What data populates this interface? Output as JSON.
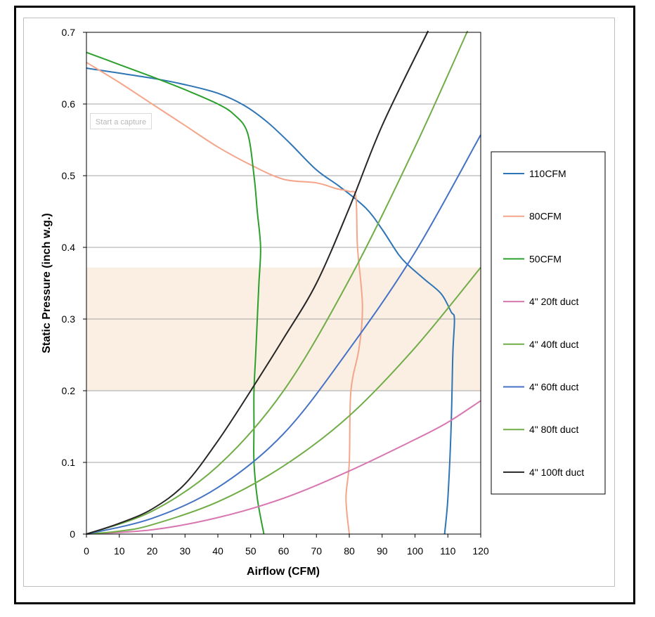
{
  "capture_button": {
    "label": "Start a capture"
  },
  "chart_data": {
    "type": "line",
    "title": "",
    "xlabel": "Airflow (CFM)",
    "ylabel": "Static Pressure (inch w.g.)",
    "xlim": [
      0,
      120
    ],
    "ylim": [
      0,
      0.7
    ],
    "xticks": [
      0,
      10,
      20,
      30,
      40,
      50,
      60,
      70,
      80,
      90,
      100,
      110,
      120
    ],
    "yticks": [
      0,
      0.1,
      0.2,
      0.3,
      0.4,
      0.5,
      0.6,
      0.7
    ],
    "grid": "horizontal",
    "legend_position": "right",
    "highlight_band": {
      "y_range": [
        0.2,
        0.372
      ],
      "color": "#fbeee3"
    },
    "series": [
      {
        "name": "110CFM",
        "color": "#2e75b6",
        "points": [
          [
            0,
            0.65
          ],
          [
            20,
            0.636
          ],
          [
            30,
            0.627
          ],
          [
            40,
            0.615
          ],
          [
            48,
            0.598
          ],
          [
            55,
            0.575
          ],
          [
            62,
            0.545
          ],
          [
            70,
            0.508
          ],
          [
            77,
            0.485
          ],
          [
            85,
            0.455
          ],
          [
            90,
            0.425
          ],
          [
            95,
            0.39
          ],
          [
            98,
            0.375
          ],
          [
            103,
            0.355
          ],
          [
            108,
            0.335
          ],
          [
            111,
            0.31
          ],
          [
            112,
            0.3
          ],
          [
            111.5,
            0.25
          ],
          [
            111,
            0.15
          ],
          [
            110,
            0.05
          ],
          [
            109,
            0
          ]
        ]
      },
      {
        "name": "80CFM",
        "color": "#f4a58a",
        "points": [
          [
            0,
            0.658
          ],
          [
            10,
            0.63
          ],
          [
            20,
            0.6
          ],
          [
            30,
            0.57
          ],
          [
            40,
            0.54
          ],
          [
            50,
            0.515
          ],
          [
            60,
            0.495
          ],
          [
            70,
            0.49
          ],
          [
            76,
            0.482
          ],
          [
            80,
            0.478
          ],
          [
            82,
            0.47
          ],
          [
            82.5,
            0.4
          ],
          [
            84,
            0.32
          ],
          [
            83,
            0.26
          ],
          [
            80.5,
            0.2
          ],
          [
            80,
            0.1
          ],
          [
            79,
            0.05
          ],
          [
            80,
            0
          ]
        ]
      },
      {
        "name": "50CFM",
        "color": "#2ca02c",
        "points": [
          [
            0,
            0.672
          ],
          [
            10,
            0.655
          ],
          [
            20,
            0.638
          ],
          [
            30,
            0.62
          ],
          [
            40,
            0.6
          ],
          [
            45,
            0.585
          ],
          [
            49,
            0.56
          ],
          [
            51,
            0.5
          ],
          [
            52,
            0.45
          ],
          [
            53,
            0.4
          ],
          [
            52.5,
            0.35
          ],
          [
            52,
            0.3
          ],
          [
            51.5,
            0.25
          ],
          [
            51,
            0.2
          ],
          [
            51,
            0.15
          ],
          [
            51,
            0.1
          ],
          [
            52,
            0.05
          ],
          [
            54,
            0
          ]
        ]
      },
      {
        "name": "4\" 20ft duct",
        "color": "#d877b0",
        "points": [
          [
            0,
            0
          ],
          [
            20,
            0.006
          ],
          [
            40,
            0.023
          ],
          [
            60,
            0.05
          ],
          [
            80,
            0.088
          ],
          [
            100,
            0.132
          ],
          [
            110,
            0.156
          ],
          [
            120,
            0.186
          ]
        ]
      },
      {
        "name": "4\" 40ft duct",
        "color": "#70ad47",
        "points": [
          [
            0,
            0
          ],
          [
            10,
            0.004
          ],
          [
            20,
            0.013
          ],
          [
            40,
            0.045
          ],
          [
            60,
            0.095
          ],
          [
            80,
            0.165
          ],
          [
            100,
            0.26
          ],
          [
            120,
            0.372
          ]
        ]
      },
      {
        "name": "4\" 60ft duct",
        "color": "#4472c4",
        "points": [
          [
            0,
            0
          ],
          [
            20,
            0.022
          ],
          [
            40,
            0.065
          ],
          [
            60,
            0.14
          ],
          [
            80,
            0.258
          ],
          [
            100,
            0.393
          ],
          [
            120,
            0.557
          ]
        ]
      },
      {
        "name": "4\" 80ft duct",
        "color": "#70ad47",
        "points": [
          [
            0,
            0
          ],
          [
            20,
            0.032
          ],
          [
            40,
            0.095
          ],
          [
            60,
            0.2
          ],
          [
            80,
            0.355
          ],
          [
            100,
            0.54
          ],
          [
            116,
            0.702
          ]
        ]
      },
      {
        "name": "4\" 100ft duct",
        "color": "#262626",
        "points": [
          [
            0,
            0
          ],
          [
            10,
            0.015
          ],
          [
            20,
            0.035
          ],
          [
            30,
            0.07
          ],
          [
            40,
            0.13
          ],
          [
            50,
            0.2
          ],
          [
            60,
            0.273
          ],
          [
            70,
            0.35
          ],
          [
            80,
            0.455
          ],
          [
            90,
            0.57
          ],
          [
            104,
            0.702
          ]
        ]
      }
    ]
  }
}
